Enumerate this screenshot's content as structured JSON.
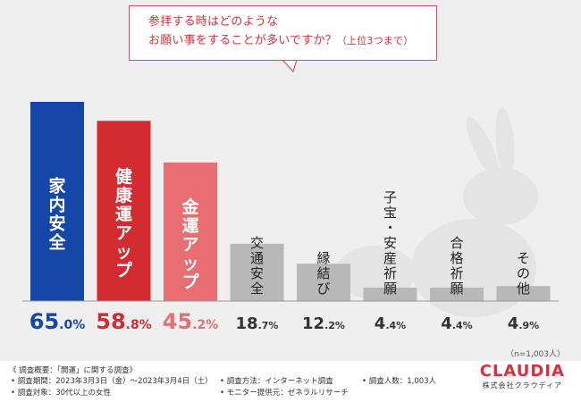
{
  "question": {
    "line1": "参拝する時はどのような",
    "line2": "お願い事をすることが多いですか？",
    "note": "（上位3つまで）"
  },
  "chart_data": {
    "type": "bar",
    "title": "参拝する時はどのようなお願い事をすることが多いですか？（上位3つまで）",
    "categories": [
      "家内安全",
      "健康運アップ",
      "金運アップ",
      "交通安全",
      "縁結び",
      "子宝・安産祈願",
      "合格祈願",
      "その他"
    ],
    "values": [
      65.0,
      58.8,
      45.2,
      18.7,
      12.2,
      4.4,
      4.4,
      4.9
    ],
    "value_labels": [
      {
        "int": "65",
        "dec": ".0%"
      },
      {
        "int": "58",
        "dec": ".8%"
      },
      {
        "int": "45",
        "dec": ".2%"
      },
      {
        "int": "18",
        "dec": ".7%"
      },
      {
        "int": "12",
        "dec": ".2%"
      },
      {
        "int": "4",
        "dec": ".4%"
      },
      {
        "int": "4",
        "dec": ".4%"
      },
      {
        "int": "4",
        "dec": ".9%"
      }
    ],
    "colors": [
      "#1447a8",
      "#d22b30",
      "#e86e73",
      "#b8b8b8",
      "#b8b8b8",
      "#b8b8b8",
      "#b8b8b8",
      "#b8b8b8"
    ],
    "label_colors": [
      "#ffffff",
      "#ffffff",
      "#ffffff",
      "#222222",
      "#222222",
      "#222222",
      "#222222",
      "#222222"
    ],
    "value_colors": [
      "#1447a8",
      "#d22b30",
      "#e86e73",
      "#333333",
      "#333333",
      "#333333",
      "#333333",
      "#333333"
    ],
    "ylim": [
      0,
      70
    ],
    "xlabel": "",
    "ylabel": ""
  },
  "sample_note": "（n=1,003人）",
  "footer": {
    "title": "《 調査概要：「開運」に関する調査》",
    "period": "• 調査期間：2023年3月3日（金）～2023年3月4日（土）",
    "target": "• 調査対象：30代以上の女性",
    "method": "• 調査方法：インターネット調査",
    "provider": "• モニター提供元：ゼネラルリサーチ",
    "count": "• 調査人数：1,003人"
  },
  "brand": {
    "logo": "CLAUDIA",
    "company": "株式会社クラウディア"
  }
}
